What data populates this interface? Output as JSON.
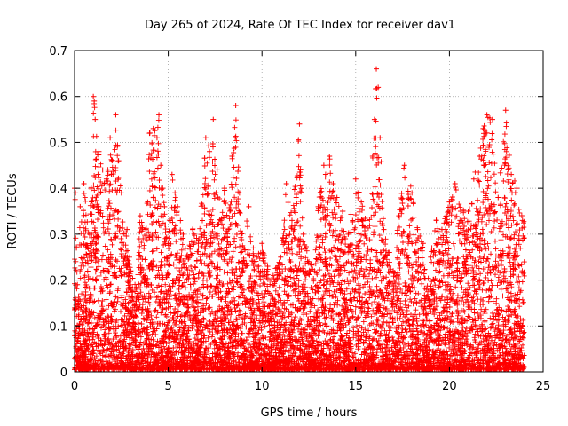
{
  "chart_data": {
    "type": "scatter",
    "title": "Day 265 of 2024, Rate Of TEC Index for receiver dav1",
    "xlabel": "GPS time / hours",
    "ylabel": "ROTI / TECUs",
    "xlim": [
      0,
      25
    ],
    "ylim": [
      0,
      0.7
    ],
    "xticks": [
      0,
      5,
      10,
      15,
      20,
      25
    ],
    "xtick_labels": [
      "0",
      "5",
      "10",
      "15",
      "20",
      "25"
    ],
    "yticks": [
      0,
      0.1,
      0.2,
      0.3,
      0.4,
      0.5,
      0.6,
      0.7
    ],
    "ytick_labels": [
      "0",
      "0.1",
      "0.2",
      "0.3",
      "0.4",
      "0.5",
      "0.6",
      "0.7"
    ],
    "grid": true,
    "marker": "plus",
    "color": "#ff0000",
    "series": [
      {
        "x": [
          0.0,
          0.05,
          0.1,
          0.15,
          0.2,
          0.3,
          0.5,
          0.8,
          1.0,
          1.05,
          1.1,
          1.3,
          1.5,
          1.7,
          1.9,
          2.0,
          2.2,
          2.5,
          2.8,
          3.0,
          3.3,
          3.5,
          3.8,
          4.0,
          4.2,
          4.4,
          4.5,
          4.6,
          4.7,
          4.8,
          5.0,
          5.2,
          5.5,
          5.8,
          6.0,
          6.3,
          6.6,
          7.0,
          7.2,
          7.4,
          7.6,
          7.8,
          8.0,
          8.2,
          8.4,
          8.6,
          8.8,
          9.0,
          9.3,
          9.6,
          10.0,
          10.3,
          10.6,
          11.0,
          11.3,
          11.6,
          12.0,
          12.2,
          12.5,
          12.8,
          13.0,
          13.3,
          13.6,
          13.8,
          14.0,
          14.3,
          14.6,
          15.0,
          15.3,
          15.6,
          15.9,
          16.0,
          16.1,
          16.2,
          16.3,
          16.5,
          16.8,
          17.0,
          17.3,
          17.6,
          18.0,
          18.3,
          18.6,
          19.0,
          19.3,
          19.6,
          20.0,
          20.3,
          20.6,
          21.0,
          21.3,
          21.6,
          21.8,
          22.0,
          22.3,
          22.6,
          23.0,
          23.3,
          23.6,
          23.9
        ],
        "y": [
          0.4,
          0.39,
          0.27,
          0.19,
          0.15,
          0.36,
          0.41,
          0.3,
          0.6,
          0.59,
          0.55,
          0.48,
          0.44,
          0.42,
          0.51,
          0.46,
          0.56,
          0.39,
          0.31,
          0.22,
          0.18,
          0.34,
          0.31,
          0.52,
          0.53,
          0.51,
          0.56,
          0.45,
          0.4,
          0.36,
          0.28,
          0.43,
          0.36,
          0.3,
          0.25,
          0.31,
          0.28,
          0.51,
          0.48,
          0.55,
          0.44,
          0.33,
          0.4,
          0.31,
          0.47,
          0.58,
          0.39,
          0.27,
          0.36,
          0.24,
          0.28,
          0.23,
          0.21,
          0.25,
          0.41,
          0.33,
          0.54,
          0.3,
          0.24,
          0.22,
          0.36,
          0.45,
          0.47,
          0.41,
          0.38,
          0.35,
          0.3,
          0.42,
          0.37,
          0.33,
          0.47,
          0.55,
          0.66,
          0.62,
          0.51,
          0.31,
          0.26,
          0.22,
          0.34,
          0.45,
          0.39,
          0.31,
          0.28,
          0.25,
          0.33,
          0.31,
          0.37,
          0.41,
          0.35,
          0.35,
          0.42,
          0.47,
          0.53,
          0.56,
          0.55,
          0.38,
          0.57,
          0.43,
          0.4,
          0.33
        ]
      }
    ]
  }
}
